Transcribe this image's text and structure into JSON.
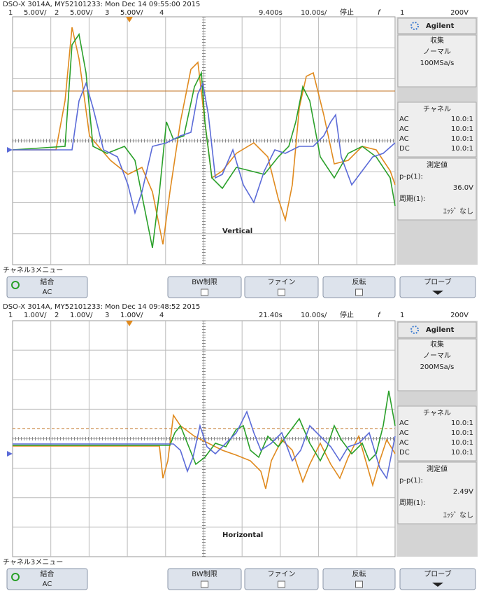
{
  "scopes": [
    {
      "title": "DSO-X 3014A, MY52101233: Mon Dec 14 09:55:00 2015",
      "channels": [
        {
          "num": "1",
          "scale": "5.00V/"
        },
        {
          "num": "2",
          "scale": "5.00V/"
        },
        {
          "num": "3",
          "scale": "5.00V/"
        },
        {
          "num": "4"
        }
      ],
      "delay": "9.400s",
      "timebase": "10.00s/",
      "status": "停止",
      "trigger": {
        "slope": "f",
        "source": "1",
        "level": "200V"
      },
      "panel": {
        "brand": "Agilent",
        "acquire": "収集",
        "mode": "ノーマル",
        "rate": "100MSa/s",
        "channels_header": "チャネル",
        "channel_rows": [
          {
            "coupling": "AC",
            "probe": "10.0:1"
          },
          {
            "coupling": "AC",
            "probe": "10.0:1"
          },
          {
            "coupling": "AC",
            "probe": "10.0:1"
          },
          {
            "coupling": "DC",
            "probe": "10.0:1"
          }
        ],
        "measure_header": "測定値",
        "measure_label": "p-p(1):",
        "measure_value": "36.0V",
        "period_label": "周期(1):",
        "period_value": "ｴｯｼﾞ なし"
      },
      "menu_title": "チャネル3メニュー",
      "softkeys": [
        {
          "label": "結合",
          "value": "AC"
        },
        {
          "label": "BW制限"
        },
        {
          "label": "ファイン"
        },
        {
          "label": "反転"
        },
        {
          "label": "プローブ"
        }
      ],
      "caption": "Vertical"
    },
    {
      "title": "DSO-X 3014A, MY52101233: Mon Dec 14 09:48:52 2015",
      "channels": [
        {
          "num": "1",
          "scale": "1.00V/"
        },
        {
          "num": "2",
          "scale": "1.00V/"
        },
        {
          "num": "3",
          "scale": "1.00V/"
        },
        {
          "num": "4"
        }
      ],
      "delay": "21.40s",
      "timebase": "10.00s/",
      "status": "停止",
      "trigger": {
        "slope": "f",
        "source": "1",
        "level": "200V"
      },
      "panel": {
        "brand": "Agilent",
        "acquire": "収集",
        "mode": "ノーマル",
        "rate": "200MSa/s",
        "channels_header": "チャネル",
        "channel_rows": [
          {
            "coupling": "AC",
            "probe": "10.0:1"
          },
          {
            "coupling": "AC",
            "probe": "10.0:1"
          },
          {
            "coupling": "AC",
            "probe": "10.0:1"
          },
          {
            "coupling": "DC",
            "probe": "10.0:1"
          }
        ],
        "measure_header": "測定値",
        "measure_label": "p-p(1):",
        "measure_value": "2.49V",
        "period_label": "周期(1):",
        "period_value": "ｴｯｼﾞ なし"
      },
      "menu_title": "チャネル3メニュー",
      "softkeys": [
        {
          "label": "結合",
          "value": "AC"
        },
        {
          "label": "BW制限"
        },
        {
          "label": "ファイン"
        },
        {
          "label": "反転"
        },
        {
          "label": "プローブ"
        }
      ],
      "caption": "Horizontal"
    }
  ]
}
